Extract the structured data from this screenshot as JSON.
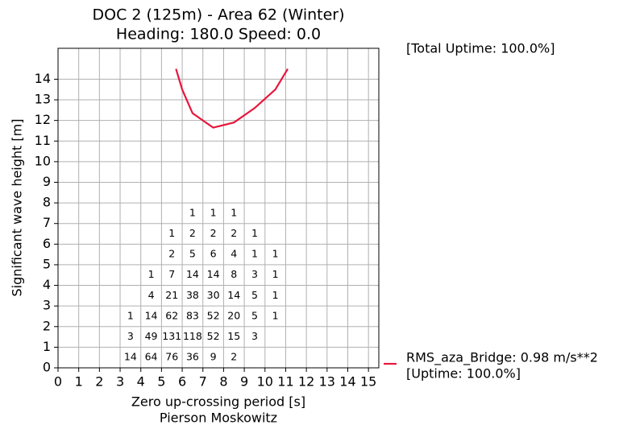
{
  "chart_data": {
    "type": "line",
    "title": "DOC 2 (125m) - Area 62 (Winter)",
    "subtitle": "Heading: 180.0  Speed: 0.0",
    "annotation": "[Total Uptime: 100.0%]",
    "x_label": "Zero up-crossing period [s]",
    "x_sublabel": "Pierson Moskowitz",
    "y_label": "Significant wave height [m]",
    "xlim": [
      0,
      15.5
    ],
    "ylim": [
      0,
      15.5
    ],
    "xticks": [
      0,
      1,
      2,
      3,
      4,
      5,
      6,
      7,
      8,
      9,
      10,
      11,
      12,
      13,
      14,
      15
    ],
    "yticks": [
      0,
      1,
      2,
      3,
      4,
      5,
      6,
      7,
      8,
      9,
      10,
      11,
      12,
      13,
      14
    ],
    "grid": true,
    "legend_position": "lower right outside",
    "x": [
      5.7,
      6.0,
      6.5,
      7.5,
      8.5,
      9.5,
      10.5,
      11.1
    ],
    "series": [
      {
        "name": "RMS_aza_Bridge: 0.98 m/s**2",
        "note": "[Uptime: 100.0%]",
        "color": "#e8173d",
        "values": [
          14.5,
          13.5,
          12.35,
          11.65,
          11.9,
          12.6,
          13.5,
          14.5
        ]
      }
    ],
    "cells": [
      {
        "x": 3.5,
        "y": 0.5,
        "value": 14
      },
      {
        "x": 4.5,
        "y": 0.5,
        "value": 64
      },
      {
        "x": 5.5,
        "y": 0.5,
        "value": 76
      },
      {
        "x": 6.5,
        "y": 0.5,
        "value": 36
      },
      {
        "x": 7.5,
        "y": 0.5,
        "value": 9
      },
      {
        "x": 8.5,
        "y": 0.5,
        "value": 2
      },
      {
        "x": 3.5,
        "y": 1.5,
        "value": 3
      },
      {
        "x": 4.5,
        "y": 1.5,
        "value": 49
      },
      {
        "x": 5.5,
        "y": 1.5,
        "value": 131
      },
      {
        "x": 6.5,
        "y": 1.5,
        "value": 118
      },
      {
        "x": 7.5,
        "y": 1.5,
        "value": 52
      },
      {
        "x": 8.5,
        "y": 1.5,
        "value": 15
      },
      {
        "x": 9.5,
        "y": 1.5,
        "value": 3
      },
      {
        "x": 3.5,
        "y": 2.5,
        "value": 1
      },
      {
        "x": 4.5,
        "y": 2.5,
        "value": 14
      },
      {
        "x": 5.5,
        "y": 2.5,
        "value": 62
      },
      {
        "x": 6.5,
        "y": 2.5,
        "value": 83
      },
      {
        "x": 7.5,
        "y": 2.5,
        "value": 52
      },
      {
        "x": 8.5,
        "y": 2.5,
        "value": 20
      },
      {
        "x": 9.5,
        "y": 2.5,
        "value": 5
      },
      {
        "x": 10.5,
        "y": 2.5,
        "value": 1
      },
      {
        "x": 4.5,
        "y": 3.5,
        "value": 4
      },
      {
        "x": 5.5,
        "y": 3.5,
        "value": 21
      },
      {
        "x": 6.5,
        "y": 3.5,
        "value": 38
      },
      {
        "x": 7.5,
        "y": 3.5,
        "value": 30
      },
      {
        "x": 8.5,
        "y": 3.5,
        "value": 14
      },
      {
        "x": 9.5,
        "y": 3.5,
        "value": 5
      },
      {
        "x": 10.5,
        "y": 3.5,
        "value": 1
      },
      {
        "x": 4.5,
        "y": 4.5,
        "value": 1
      },
      {
        "x": 5.5,
        "y": 4.5,
        "value": 7
      },
      {
        "x": 6.5,
        "y": 4.5,
        "value": 14
      },
      {
        "x": 7.5,
        "y": 4.5,
        "value": 14
      },
      {
        "x": 8.5,
        "y": 4.5,
        "value": 8
      },
      {
        "x": 9.5,
        "y": 4.5,
        "value": 3
      },
      {
        "x": 10.5,
        "y": 4.5,
        "value": 1
      },
      {
        "x": 5.5,
        "y": 5.5,
        "value": 2
      },
      {
        "x": 6.5,
        "y": 5.5,
        "value": 5
      },
      {
        "x": 7.5,
        "y": 5.5,
        "value": 6
      },
      {
        "x": 8.5,
        "y": 5.5,
        "value": 4
      },
      {
        "x": 9.5,
        "y": 5.5,
        "value": 1
      },
      {
        "x": 10.5,
        "y": 5.5,
        "value": 1
      },
      {
        "x": 5.5,
        "y": 6.5,
        "value": 1
      },
      {
        "x": 6.5,
        "y": 6.5,
        "value": 2
      },
      {
        "x": 7.5,
        "y": 6.5,
        "value": 2
      },
      {
        "x": 8.5,
        "y": 6.5,
        "value": 2
      },
      {
        "x": 9.5,
        "y": 6.5,
        "value": 1
      },
      {
        "x": 6.5,
        "y": 7.5,
        "value": 1
      },
      {
        "x": 7.5,
        "y": 7.5,
        "value": 1
      },
      {
        "x": 8.5,
        "y": 7.5,
        "value": 1
      }
    ]
  }
}
